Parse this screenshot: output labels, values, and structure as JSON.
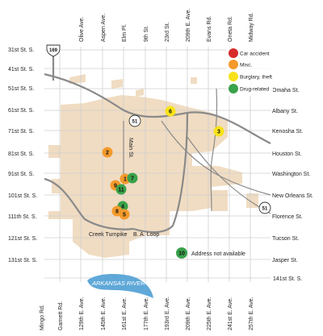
{
  "streets_ew": [
    "31st St. S.",
    "41st St. S.",
    "51st St. S.",
    "61st St. S.",
    "71st St. S.",
    "81st St. S.",
    "91st St. S.",
    "101st St. S.",
    "111th St. S.",
    "121st St. S.",
    "131st St. S."
  ],
  "streets_ew_bottom": "141st St. S.",
  "streets_ew_right": [
    "Omaha St.",
    "Albany St.",
    "Kenosha St.",
    "Houston St.",
    "Washington St.",
    "New Orleans St.",
    "Florence St.",
    "Tucson St.",
    "Jasper St."
  ],
  "avenues_top": [
    "Olive Ave.",
    "Aspen Ave.",
    "Elm Pl.",
    "9th St.",
    "23rd St.",
    "209th E. Ave.",
    "Evans Rd.",
    "Oneta Rd.",
    "Midway Rd."
  ],
  "avenues_bottom": [
    "Mingo Rd.",
    "Garnett Rd.",
    "129th E. Ave.",
    "145th E. Ave.",
    "161st E. Ave.",
    "177th E. Ave.",
    "193rd E. Ave.",
    "209th E. Ave.",
    "225th E. Ave.",
    "241st E. Ave.",
    "257th E. Ave."
  ],
  "road_labels": {
    "main": "Main St.",
    "creek_turnpike": "Creek Turnpike",
    "ba_loop": "B. A. Loop"
  },
  "highways": {
    "us": "169",
    "state_north": "51",
    "state_east": "51"
  },
  "river": "ARKANSAS RIVER",
  "legend": [
    {
      "label": "Car accident",
      "color": "#d62b2b"
    },
    {
      "label": "Misc.",
      "color": "#f39a2b"
    },
    {
      "label": "Burglary, theft",
      "color": "#f7e21a"
    },
    {
      "label": "Drug-related",
      "color": "#3aa24a"
    }
  ],
  "incidents": [
    {
      "id": "1",
      "color": "#f39a2b"
    },
    {
      "id": "2",
      "color": "#f39a2b"
    },
    {
      "id": "3",
      "color": "#f7e21a"
    },
    {
      "id": "4",
      "color": "#3aa24a"
    },
    {
      "id": "5",
      "color": "#f39a2b"
    },
    {
      "id": "6",
      "color": "#f7e21a"
    },
    {
      "id": "7",
      "color": "#3aa24a"
    },
    {
      "id": "8",
      "color": "#f39a2b"
    },
    {
      "id": "9",
      "color": "#f39a2b"
    },
    {
      "id": "10",
      "color": "#3aa24a"
    },
    {
      "id": "11",
      "color": "#3aa24a"
    }
  ],
  "note_10": "Address not available",
  "colors": {
    "city_area": "#f0dcc2",
    "river": "#5fa8d8",
    "roads": "#8a8a8a",
    "grid": "#cfcfcf"
  }
}
